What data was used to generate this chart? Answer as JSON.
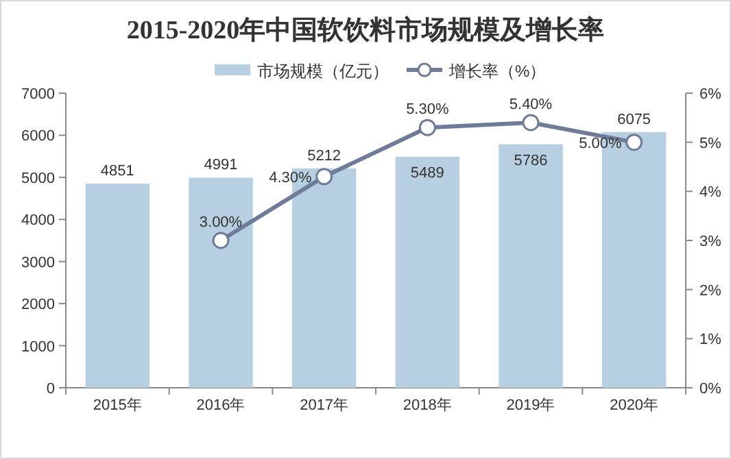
{
  "chart_data": {
    "type": "bar",
    "title": "2015-2020年中国软饮料市场规模及增长率",
    "categories": [
      "2015年",
      "2016年",
      "2017年",
      "2018年",
      "2019年",
      "2020年"
    ],
    "ylim": [
      0,
      7000
    ],
    "yticks": [
      0,
      1000,
      2000,
      3000,
      4000,
      5000,
      6000,
      7000
    ],
    "y2lim": [
      0,
      6
    ],
    "y2ticks": [
      {
        "value": 0,
        "label": "0%"
      },
      {
        "value": 1,
        "label": "1%"
      },
      {
        "value": 2,
        "label": "2%"
      },
      {
        "value": 3,
        "label": "3%"
      },
      {
        "value": 4,
        "label": "4%"
      },
      {
        "value": 5,
        "label": "5%"
      },
      {
        "value": 6,
        "label": "6%"
      }
    ],
    "legend": "top",
    "grid": false,
    "series": [
      {
        "name": "市场规模（亿元）",
        "color": "#b7d0e1",
        "values": [
          4851,
          4991,
          5212,
          5489,
          5786,
          6075
        ],
        "value_labels": [
          "4851",
          "4991",
          "5212",
          "5489",
          "5786",
          "6075"
        ]
      },
      {
        "name": "增长率（%）",
        "type": "line",
        "axis": "y2",
        "color": "#6e7b9b",
        "marker": "circle",
        "values": [
          null,
          3.0,
          4.3,
          5.3,
          5.4,
          5.0
        ],
        "value_labels": [
          null,
          "3.00%",
          "4.30%",
          "5.30%",
          "5.40%",
          "5.00%"
        ]
      }
    ]
  }
}
